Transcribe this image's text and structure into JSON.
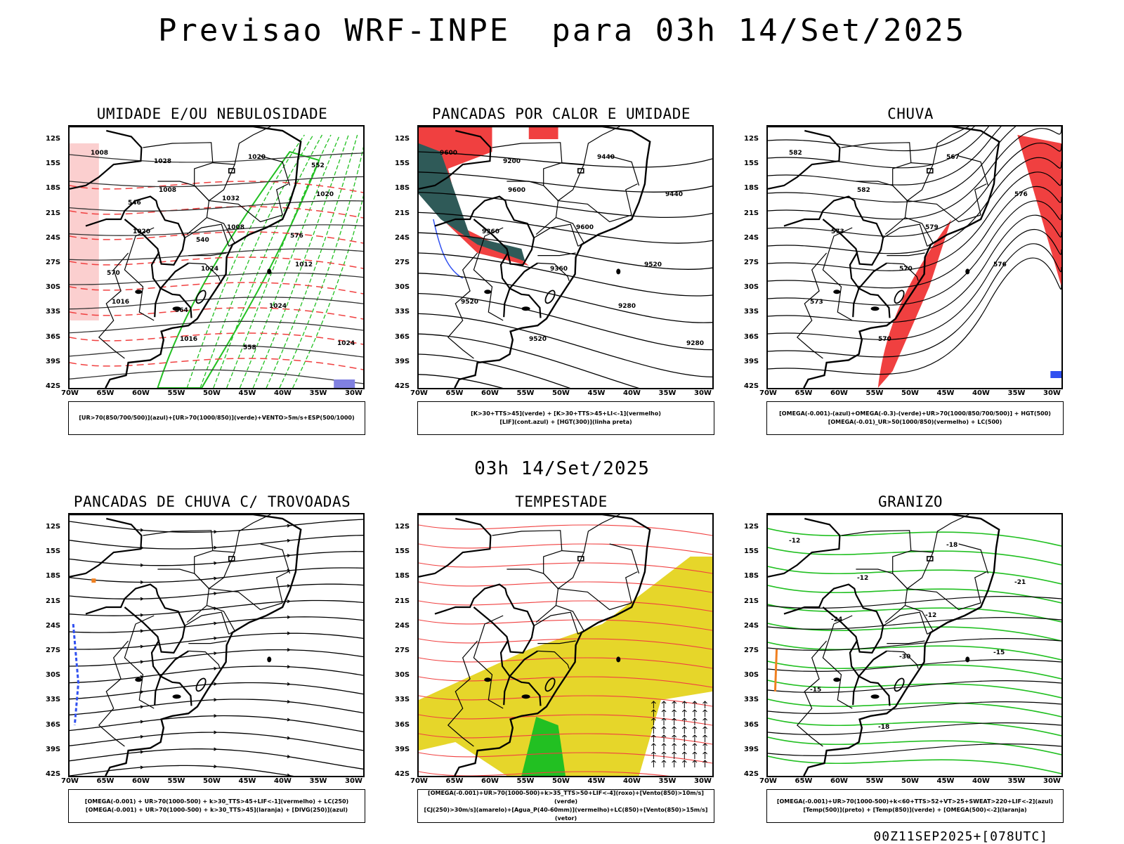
{
  "title": "Previsao WRF-INPE  para 03h 14/Set/2025",
  "mid_title": "03h 14/Set/2025",
  "footer": "00Z11SEP2025+[078UTC]",
  "axes": {
    "lat_ticks": [
      "12S",
      "15S",
      "18S",
      "21S",
      "24S",
      "27S",
      "30S",
      "33S",
      "36S",
      "39S",
      "42S"
    ],
    "lon_ticks": [
      "70W",
      "65W",
      "60W",
      "55W",
      "50W",
      "45W",
      "40W",
      "35W",
      "30W"
    ]
  },
  "panels": [
    {
      "id": "umidade",
      "title": "UMIDADE E/OU NEBULOSIDADE",
      "legend": [
        "[UR>70(850/700/500)](azul)+[UR>70(1000/850)](verde)+VENTO>5m/s+ESP(500/1000)"
      ],
      "contour_labels": [
        "1008",
        "1008",
        "1008",
        "1012",
        "1016",
        "1016",
        "1020",
        "1020",
        "1020",
        "1024",
        "1024",
        "1024",
        "1028",
        "1032",
        "576",
        "570",
        "564",
        "558",
        "552",
        "546",
        "540"
      ]
    },
    {
      "id": "pancadas-calor",
      "title": "PANCADAS POR CALOR E UMIDADE",
      "legend": [
        "[K>30+TTS>45](verde) + [K>30+TTS>45+LI<-1](vermelho)",
        "[LIF](cont.azul) + [HGT(300)](linha preta)"
      ],
      "contour_labels": [
        "9600",
        "9600",
        "9600",
        "9520",
        "9520",
        "9520",
        "9440",
        "9440",
        "9360",
        "9360",
        "9280",
        "9280",
        "9200"
      ]
    },
    {
      "id": "chuva",
      "title": "CHUVA",
      "legend": [
        "[OMEGA(-0.001)-(azul)+OMEGA(-0.3)-(verde)+UR>70(1000/850/700/500)] + HGT(500)",
        "[OMEGA(-0.01)_UR>50(1000/850)(vermelho) + LC(500)"
      ],
      "contour_labels": [
        "582",
        "582",
        "579",
        "576",
        "573",
        "570",
        "567",
        "576",
        "573",
        "570"
      ]
    },
    {
      "id": "trovoadas",
      "title": "PANCADAS DE CHUVA C/ TROVOADAS",
      "legend": [
        "[OMEGA(-0.001) + UR>70(1000-500) + k>30_TTS>45+LIF<-1](vermelho) + LC(250)",
        "[OMEGA(-0.001) + UR>70(1000-500) + k>30_TTS>45](laranja) + [DIVG(250)](azul)"
      ],
      "contour_labels": []
    },
    {
      "id": "tempestade",
      "title": "TEMPESTADE",
      "legend": [
        "[OMEGA(-0.001)+UR>70(1000-500)+k>35_TTS>50+LIF<-4](roxo)+[Vento(850)>10m/s](verde)",
        "[CJ(250)>30m/s](amarelo)+[Agua_P(40-60mm)](vermelho)+LC(850)+[Vento(850)>15m/s](vetor)"
      ],
      "contour_labels": []
    },
    {
      "id": "granizo",
      "title": "GRANIZO",
      "legend": [
        "[OMEGA(-0.001)+UR>70(1000-500)+k<60+TTS>52+VT>25+SWEAT>220+LIF<-2](azul)",
        "[Temp(500)](preto) + [Temp(850)](verde) + [OMEGA(500)<-2](laranja)"
      ],
      "contour_labels": [
        "-12",
        "-12",
        "-12",
        "-15",
        "-15",
        "-18",
        "-18",
        "-21",
        "-24",
        "-30"
      ]
    }
  ],
  "colors": {
    "red": "#f04040",
    "green": "#22c022",
    "blue": "#3050f0",
    "yellow": "#e6d62a",
    "teal": "#2f5a58",
    "orange": "#f08020",
    "black": "#000000"
  }
}
